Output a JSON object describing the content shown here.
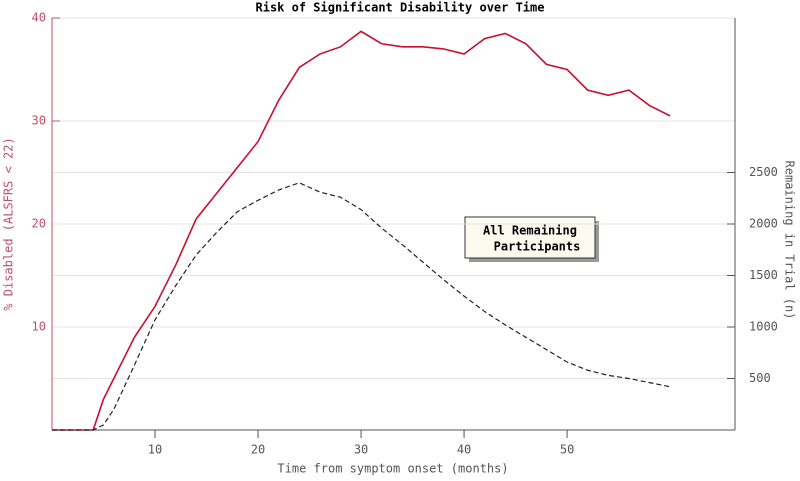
{
  "chart_data": {
    "type": "line",
    "title": "Risk of Significant Disability over Time",
    "x_label": "Time from symptom onset (months)",
    "y_label": "% Disabled (ALSFRS < 22)",
    "y2_label": "Remaining in Trial (n)",
    "annotation": [
      "All Remaining",
      "Participants"
    ],
    "x": [
      0,
      2,
      4,
      5,
      6,
      8,
      10,
      12,
      14,
      16,
      18,
      20,
      22,
      24,
      26,
      28,
      30,
      32,
      34,
      36,
      38,
      40,
      42,
      44,
      46,
      48,
      50,
      52,
      54,
      56,
      58,
      60
    ],
    "series": [
      {
        "color": "#c8102e",
        "values": [
          0,
          0,
          0,
          3,
          5,
          9,
          12,
          16,
          20.5,
          23,
          25.5,
          28,
          32,
          35.2,
          36.5,
          37.2,
          38.7,
          37.5,
          37.2,
          37.2,
          37,
          36.5,
          38,
          38.5,
          37.5,
          35.5,
          35,
          33,
          32.5,
          33,
          31.5,
          30.5
        ]
      },
      {
        "color": "#222222",
        "axis": "y2",
        "dashed": true,
        "values": [
          0,
          0,
          0,
          50,
          200,
          630,
          1070,
          1400,
          1700,
          1920,
          2120,
          2230,
          2330,
          2400,
          2310,
          2260,
          2140,
          1960,
          1800,
          1630,
          1460,
          1300,
          1150,
          1020,
          900,
          780,
          660,
          580,
          530,
          500,
          460,
          420
        ]
      }
    ],
    "xlim": [
      0,
      66.3
    ],
    "xticks": [
      10,
      20,
      30,
      40,
      50
    ],
    "ylim": [
      0,
      40
    ],
    "yticks": [
      10,
      20,
      30,
      40
    ],
    "y2lim": [
      0,
      4000
    ],
    "y2ticks": [
      500,
      1000,
      1500,
      2000,
      2500
    ],
    "grid": true,
    "y_color": "#c0506a"
  }
}
